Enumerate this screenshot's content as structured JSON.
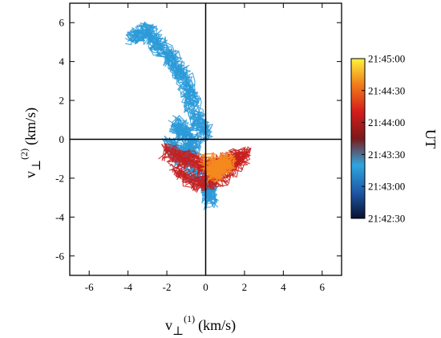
{
  "chart_data": {
    "type": "scatter",
    "xlabel": {
      "base": "v",
      "sub": "⊥",
      "sup": "(1)",
      "unit": "(km/s)"
    },
    "ylabel": {
      "base": "v",
      "sub": "⊥",
      "sup": "(2)",
      "unit": "(km/s)"
    },
    "xlim": [
      -7,
      7
    ],
    "ylim": [
      -7,
      7
    ],
    "xticks": [
      -6,
      -4,
      -2,
      0,
      2,
      4,
      6
    ],
    "yticks": [
      -6,
      -4,
      -2,
      0,
      2,
      4,
      6
    ],
    "zero_lines": true,
    "colorbar": {
      "label": "UT",
      "ticks": [
        "21:42:30",
        "21:43:00",
        "21:43:30",
        "21:44:00",
        "21:44:30",
        "21:45:00"
      ],
      "colors": [
        "#0a1030",
        "#1e5aa8",
        "#2fa6e0",
        "#7a1a1a",
        "#d41c1c",
        "#f07a1a",
        "#fff23a"
      ]
    },
    "trajectory_segments": [
      {
        "time": "21:42:55",
        "color": "#2a9ad8",
        "points": [
          [
            -3.8,
            5.2
          ],
          [
            -3.0,
            5.6
          ],
          [
            -2.5,
            5.0
          ],
          [
            -1.8,
            4.2
          ],
          [
            -1.2,
            3.4
          ],
          [
            -0.8,
            2.2
          ],
          [
            -0.4,
            1.0
          ],
          [
            0.0,
            0.2
          ]
        ]
      },
      {
        "time": "21:43:05",
        "color": "#2a9ad8",
        "points": [
          [
            -1.6,
            0.9
          ],
          [
            -1.0,
            0.3
          ],
          [
            -0.6,
            -0.4
          ],
          [
            -1.2,
            -1.0
          ],
          [
            -1.8,
            -0.2
          ],
          [
            -0.5,
            -1.8
          ],
          [
            0.2,
            -2.6
          ],
          [
            0.3,
            -3.2
          ]
        ]
      },
      {
        "time": "21:43:40",
        "color": "#c81e1e",
        "points": [
          [
            -2.0,
            -0.6
          ],
          [
            -1.0,
            -1.0
          ],
          [
            0.0,
            -1.4
          ],
          [
            1.0,
            -1.2
          ],
          [
            2.0,
            -0.8
          ],
          [
            0.8,
            -2.0
          ],
          [
            -0.4,
            -2.3
          ],
          [
            -1.5,
            -1.5
          ]
        ]
      },
      {
        "time": "21:44:25",
        "color": "#f58a1e",
        "points": [
          [
            0.0,
            -1.0
          ],
          [
            0.6,
            -1.6
          ],
          [
            1.2,
            -1.1
          ],
          [
            0.4,
            -1.8
          ],
          [
            0.8,
            -1.3
          ]
        ]
      }
    ]
  }
}
